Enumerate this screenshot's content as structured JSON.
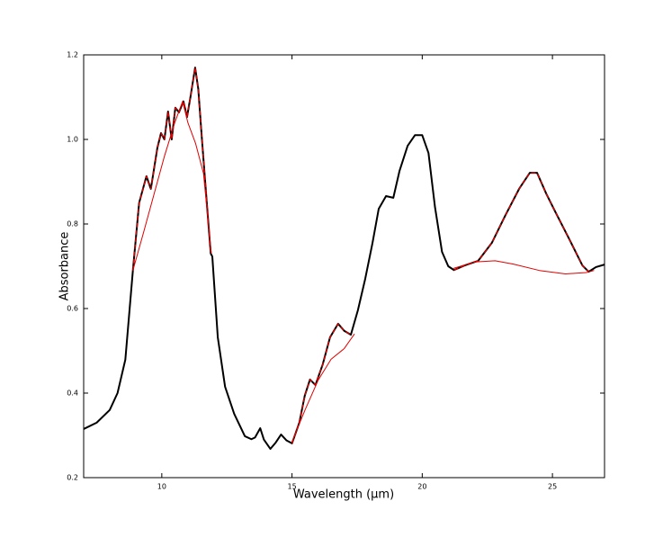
{
  "chart_data": {
    "type": "line",
    "xlabel": "Wavelength (μm)",
    "ylabel": "Absorbance",
    "xlim": [
      7,
      27
    ],
    "ylim": [
      0.2,
      1.2
    ],
    "xticks": [
      10,
      15,
      20,
      25
    ],
    "yticks": [
      0.2,
      0.4,
      0.6,
      0.8,
      {
        "value": 1.0,
        "label": "1.0"
      },
      1.2
    ],
    "grid": false,
    "series": [
      {
        "color": "#000000",
        "linestyle": "solid",
        "linewidth": 2,
        "x": [
          7,
          7.5,
          8,
          8.3,
          8.6,
          8.89,
          9.13,
          9.41,
          9.58,
          9.83,
          9.97,
          10.1,
          10.24,
          10.38,
          10.52,
          10.66,
          10.83,
          10.97,
          11.1,
          11.28,
          11.4,
          11.53,
          11.74,
          11.88,
          11.94,
          12.15,
          12.43,
          12.78,
          13.19,
          13.44,
          13.58,
          13.78,
          13.92,
          14.17,
          14.375,
          14.58,
          14.79,
          15,
          15.28,
          15.49,
          15.69,
          15.9,
          16.18,
          16.46,
          16.77,
          17.01,
          17.26,
          17.53,
          17.81,
          18.09,
          18.33,
          18.61,
          18.89,
          19.13,
          19.44,
          19.72,
          20,
          20.24,
          20.49,
          20.76,
          21,
          21.22,
          21.63,
          22.15,
          22.67,
          23.19,
          23.72,
          24.13,
          24.41,
          24.76,
          25.1,
          25.63,
          26.15,
          26.39,
          26.67,
          27
        ],
        "values": [
          0.315,
          0.33,
          0.36,
          0.4,
          0.479,
          0.69,
          0.85,
          0.913,
          0.883,
          0.98,
          1.015,
          1.0,
          1.066,
          1.0,
          1.075,
          1.064,
          1.09,
          1.053,
          1.1,
          1.17,
          1.12,
          1.01,
          0.84,
          0.73,
          0.723,
          0.532,
          0.415,
          0.351,
          0.298,
          0.291,
          0.295,
          0.317,
          0.29,
          0.268,
          0.283,
          0.302,
          0.288,
          0.281,
          0.33,
          0.394,
          0.432,
          0.419,
          0.468,
          0.532,
          0.564,
          0.547,
          0.538,
          0.596,
          0.67,
          0.755,
          0.836,
          0.866,
          0.862,
          0.926,
          0.985,
          1.01,
          1.01,
          0.968,
          0.84,
          0.734,
          0.7,
          0.691,
          0.702,
          0.713,
          0.755,
          0.82,
          0.883,
          0.921,
          0.921,
          0.872,
          0.83,
          0.766,
          0.702,
          0.687,
          0.698,
          0.704
        ]
      },
      {
        "color": "#e00000",
        "linestyle": "solid",
        "linewidth": 1,
        "x": [
          8.89,
          9.3,
          9.7,
          10.1,
          10.5,
          10.8,
          11.0,
          11.3,
          11.6,
          11.9
        ],
        "values": [
          0.69,
          0.78,
          0.87,
          0.96,
          1.04,
          1.09,
          1.04,
          0.99,
          0.92,
          0.73
        ]
      },
      {
        "color": "#e00000",
        "linestyle": "solid",
        "linewidth": 1,
        "x": [
          15,
          15.5,
          16,
          16.5,
          17,
          17.4
        ],
        "values": [
          0.285,
          0.36,
          0.43,
          0.48,
          0.505,
          0.54
        ]
      },
      {
        "color": "#e00000",
        "linestyle": "solid",
        "linewidth": 1,
        "x": [
          21.2,
          22,
          22.8,
          23.5,
          24.5,
          25.5,
          26.3,
          26.6
        ],
        "values": [
          0.695,
          0.71,
          0.713,
          0.705,
          0.69,
          0.682,
          0.685,
          0.69
        ]
      },
      {
        "color": "#e00000",
        "linestyle": "dashed",
        "linewidth": 1.3,
        "x": [
          8.89,
          9.13,
          9.41,
          9.58,
          9.83,
          9.97,
          10.1,
          10.24,
          10.38,
          10.52,
          10.66,
          10.83,
          10.97,
          11.1,
          11.28,
          11.4,
          11.53,
          11.74,
          11.88,
          null,
          15,
          15.28,
          15.49,
          15.69,
          15.9,
          16.18,
          16.46,
          16.77,
          17.01,
          17.26,
          null,
          21.22,
          21.63,
          22.15,
          22.67,
          23.19,
          23.72,
          24.13,
          24.41,
          24.76,
          25.1,
          25.63,
          26.15,
          26.39
        ],
        "values": [
          0.69,
          0.85,
          0.913,
          0.883,
          0.98,
          1.015,
          1.0,
          1.066,
          1.0,
          1.075,
          1.064,
          1.09,
          1.053,
          1.1,
          1.17,
          1.12,
          1.01,
          0.84,
          0.73,
          null,
          0.281,
          0.33,
          0.394,
          0.432,
          0.419,
          0.468,
          0.532,
          0.564,
          0.547,
          0.538,
          null,
          0.691,
          0.702,
          0.713,
          0.755,
          0.82,
          0.883,
          0.921,
          0.921,
          0.872,
          0.83,
          0.766,
          0.702,
          0.687
        ]
      }
    ]
  }
}
